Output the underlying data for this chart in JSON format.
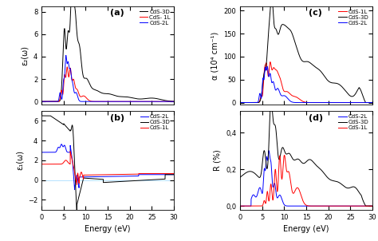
{
  "panels": [
    "(a)",
    "(b)",
    "(c)",
    "(d)"
  ],
  "xlim": [
    0,
    30
  ],
  "xlabel": "Energy (eV)",
  "colors": {
    "3D": "#000000",
    "1L": "#ff0000",
    "2L": "#0000ff"
  },
  "panel_a": {
    "ylabel": "ε₂(ω)",
    "ylim": [
      -0.3,
      8.5
    ],
    "yticks": [
      0,
      2,
      4,
      6,
      8
    ]
  },
  "panel_b": {
    "ylabel": "ε₁(ω)",
    "ylim": [
      -3.0,
      7.0
    ],
    "yticks": [
      -2,
      0,
      2,
      4,
      6
    ]
  },
  "panel_c": {
    "ylabel": "α (10⁴ cm⁻¹)",
    "ylim": [
      -5,
      210
    ],
    "yticks": [
      0,
      50,
      100,
      150,
      200
    ]
  },
  "panel_d": {
    "ylabel": "R (%)",
    "ylim": [
      -0.02,
      0.52
    ],
    "yticks": [
      0.0,
      0.2,
      0.4
    ],
    "yticklabels": [
      "0,0",
      "0,2",
      "0,4"
    ]
  },
  "background": "#ffffff",
  "line_width": 0.7
}
